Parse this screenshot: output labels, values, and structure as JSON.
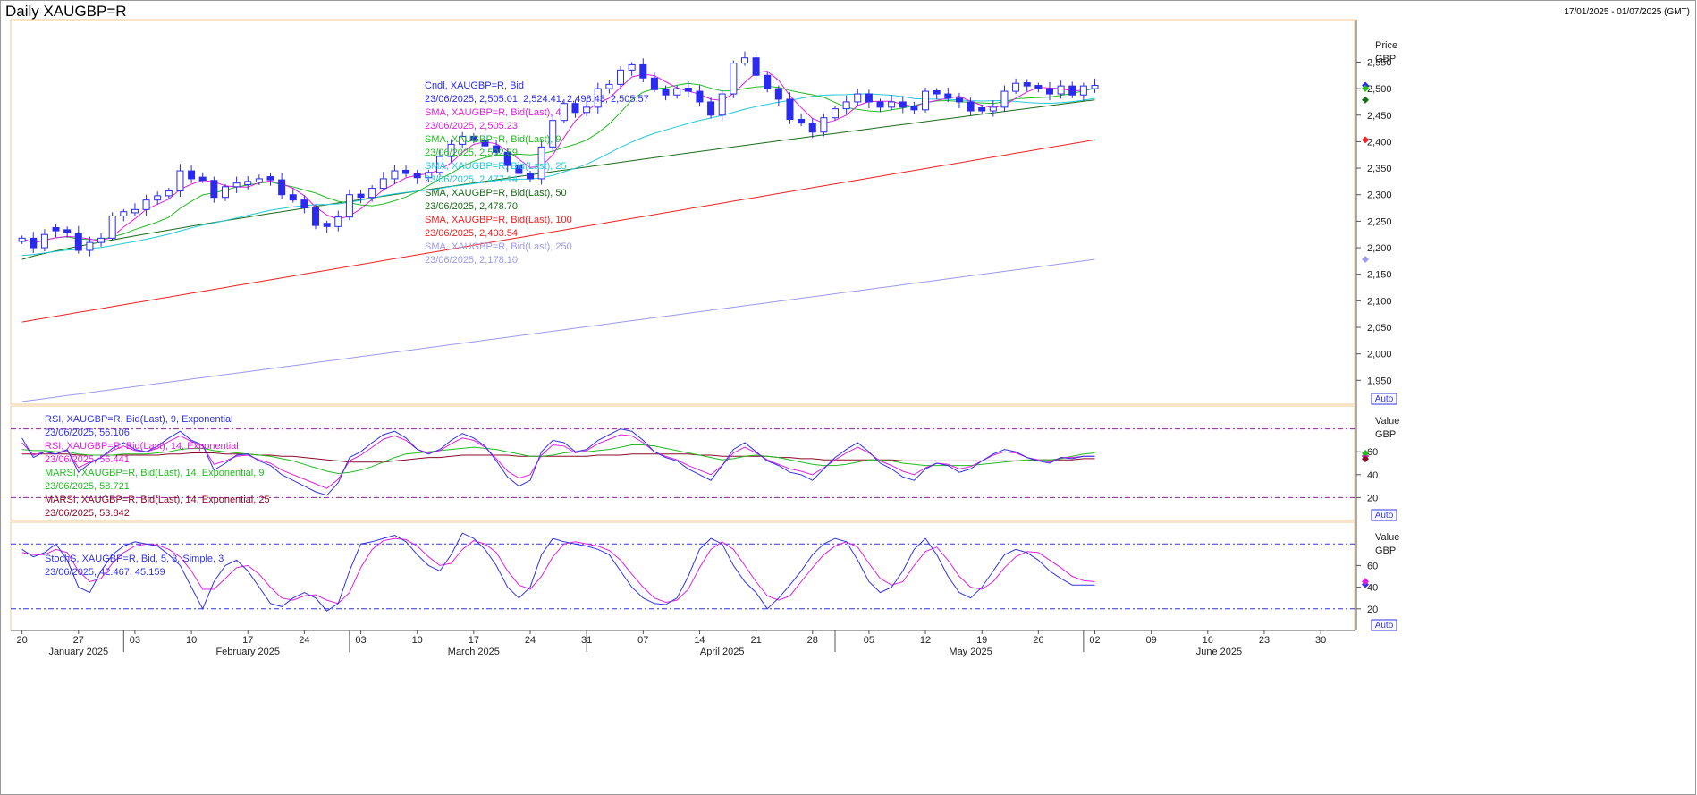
{
  "header": {
    "title": "Daily XAUGBP=R",
    "date_range": "17/01/2025 - 01/07/2025 (GMT)"
  },
  "colors": {
    "candle": "#2a2af0",
    "sma4": "#e020e0",
    "sma9": "#22bb22",
    "sma25": "#20c8d8",
    "sma50": "#1a6b1a",
    "sma100": "#ee2222",
    "sma250": "#9a9aee",
    "rsi9": "#3232e6",
    "rsi14": "#e020e0",
    "marsi9": "#22bb22",
    "marsi25": "#8b0a2a",
    "stoch_k": "#3232e6",
    "stoch_d": "#e020e0",
    "ref": "#9020a0",
    "frame": "#f0c890"
  },
  "legend_price": [
    {
      "text": "Cndl, XAUGBP=R, Bid",
      "color": "candle"
    },
    {
      "text": "23/06/2025, 2,505.01, 2,524.41, 2,498.43, 2,505.57",
      "color": "candle"
    },
    {
      "text": "SMA, XAUGBP=R, Bid(Last),  4",
      "color": "sma4"
    },
    {
      "text": "23/06/2025, 2,505.23",
      "color": "sma4"
    },
    {
      "text": "SMA, XAUGBP=R, Bid(Last),  9",
      "color": "sma9"
    },
    {
      "text": "23/06/2025, 2,502.89",
      "color": "sma9"
    },
    {
      "text": "SMA, XAUGBP=R, Bid(Last),  25",
      "color": "sma25"
    },
    {
      "text": "23/06/2025, 2,477.14",
      "color": "sma25"
    },
    {
      "text": "SMA, XAUGBP=R, Bid(Last),  50",
      "color": "sma50"
    },
    {
      "text": "23/06/2025, 2,478.70",
      "color": "sma50"
    },
    {
      "text": "SMA, XAUGBP=R, Bid(Last),  100",
      "color": "sma100"
    },
    {
      "text": "23/06/2025, 2,403.54",
      "color": "sma100"
    },
    {
      "text": "SMA, XAUGBP=R, Bid(Last),  250",
      "color": "sma250"
    },
    {
      "text": "23/06/2025, 2,178.10",
      "color": "sma250"
    }
  ],
  "legend_rsi": [
    {
      "text": "RSI, XAUGBP=R, Bid(Last),  9, Exponential",
      "color": "rsi9"
    },
    {
      "text": "23/06/2025, 56.106",
      "color": "rsi9"
    },
    {
      "text": "RSI, XAUGBP=R, Bid(Last),  14, Exponential",
      "color": "rsi14"
    },
    {
      "text": "23/06/2025, 56.441",
      "color": "rsi14"
    },
    {
      "text": "MARSI, XAUGBP=R, Bid(Last),  14, Exponential, 9",
      "color": "marsi9"
    },
    {
      "text": "23/06/2025, 58.721",
      "color": "marsi9"
    },
    {
      "text": "MARSI, XAUGBP=R, Bid(Last),  14, Exponential, 25",
      "color": "marsi25"
    },
    {
      "text": "23/06/2025, 53.842",
      "color": "marsi25"
    }
  ],
  "legend_stoch": [
    {
      "text": "StochS, XAUGBP=R, Bid,  5, 3, Simple, 3",
      "color": "stoch_k"
    },
    {
      "text": "23/06/2025, 42.467, 45.159",
      "color": "stoch_k"
    }
  ],
  "axis_labels": {
    "price_unit_1": "Price",
    "price_unit_2": "GBP",
    "value_1": "Value",
    "value_2": "GBP",
    "auto": "Auto"
  },
  "chart_data": {
    "type": "candlestick",
    "price_ticks": [
      "1,950",
      "2,000",
      "2,050",
      "2,100",
      "2,150",
      "2,200",
      "2,250",
      "2,300",
      "2,350",
      "2,400",
      "2,450",
      "2,500",
      "2,550"
    ],
    "price_tick_values": [
      1950,
      2000,
      2050,
      2100,
      2150,
      2200,
      2250,
      2300,
      2350,
      2400,
      2450,
      2500,
      2550
    ],
    "ylim": [
      1905,
      2630
    ],
    "osc_ticks": [
      "20",
      "40",
      "60"
    ],
    "osc_tick_values": [
      20,
      40,
      60
    ],
    "osc_ylim": [
      0,
      100
    ],
    "ref_levels": [
      20,
      80
    ],
    "x_day_labels": [
      "20",
      "27",
      "03",
      "10",
      "17",
      "24",
      "03",
      "10",
      "17",
      "24",
      "31",
      "07",
      "14",
      "21",
      "28",
      "05",
      "12",
      "19",
      "26",
      "02",
      "09",
      "16",
      "23",
      "30"
    ],
    "x_day_indices": [
      0,
      5,
      10,
      15,
      20,
      25,
      30,
      35,
      40,
      45,
      50,
      55,
      60,
      65,
      70,
      75,
      80,
      85,
      90,
      95,
      100,
      105,
      110,
      115
    ],
    "x_months": [
      {
        "label": "January 2025",
        "idx": 5
      },
      {
        "label": "February 2025",
        "idx": 20
      },
      {
        "label": "March 2025",
        "idx": 40
      },
      {
        "label": "April 2025",
        "idx": 62
      },
      {
        "label": "May 2025",
        "idx": 84
      },
      {
        "label": "June 2025",
        "idx": 106
      }
    ],
    "month_separators": [
      9,
      29,
      50,
      72,
      94
    ],
    "x_domain": [
      -1,
      118
    ],
    "closes": [
      2218,
      2200,
      2225,
      2232,
      2228,
      2195,
      2210,
      2218,
      2260,
      2268,
      2272,
      2290,
      2298,
      2307,
      2345,
      2330,
      2327,
      2295,
      2315,
      2322,
      2325,
      2330,
      2328,
      2300,
      2290,
      2275,
      2242,
      2240,
      2258,
      2300,
      2295,
      2312,
      2330,
      2345,
      2340,
      2332,
      2342,
      2372,
      2395,
      2410,
      2402,
      2392,
      2380,
      2355,
      2340,
      2330,
      2390,
      2440,
      2472,
      2455,
      2465,
      2500,
      2508,
      2535,
      2545,
      2520,
      2498,
      2488,
      2500,
      2495,
      2475,
      2450,
      2490,
      2548,
      2558,
      2525,
      2500,
      2480,
      2442,
      2435,
      2418,
      2445,
      2462,
      2475,
      2490,
      2475,
      2465,
      2475,
      2465,
      2460,
      2495,
      2490,
      2482,
      2475,
      2458,
      2458,
      2465,
      2495,
      2510,
      2505,
      2500,
      2490,
      2505,
      2488,
      2505,
      2506
    ],
    "candles_bull": [
      1,
      0,
      1,
      0,
      0,
      0,
      1,
      1,
      1,
      1,
      1,
      1,
      1,
      1,
      1,
      0,
      0,
      0,
      1,
      1,
      1,
      1,
      0,
      0,
      0,
      0,
      0,
      0,
      1,
      1,
      0,
      1,
      1,
      1,
      0,
      0,
      1,
      1,
      1,
      1,
      0,
      0,
      0,
      0,
      0,
      0,
      1,
      1,
      1,
      0,
      1,
      1,
      1,
      1,
      1,
      0,
      0,
      0,
      1,
      0,
      0,
      0,
      1,
      1,
      1,
      0,
      0,
      0,
      0,
      0,
      0,
      1,
      1,
      1,
      1,
      0,
      0,
      1,
      0,
      0,
      1,
      0,
      0,
      0,
      0,
      0,
      1,
      1,
      1,
      0,
      0,
      0,
      1,
      0,
      1,
      1
    ],
    "series_price": [
      {
        "name": "SMA 4",
        "color": "sma4"
      },
      {
        "name": "SMA 9",
        "color": "sma9"
      },
      {
        "name": "SMA 25",
        "color": "sma25"
      },
      {
        "name": "SMA 50",
        "color": "sma50",
        "last": 2478.7
      },
      {
        "name": "SMA 100",
        "color": "sma100",
        "first": 2060,
        "last": 2403.54
      },
      {
        "name": "SMA 250",
        "color": "sma250",
        "first": 1910,
        "last": 2178.1
      }
    ],
    "rsi9": [
      72,
      55,
      60,
      58,
      62,
      42,
      50,
      55,
      63,
      68,
      62,
      60,
      65,
      72,
      78,
      70,
      66,
      44,
      50,
      57,
      58,
      52,
      48,
      40,
      35,
      30,
      25,
      22,
      33,
      55,
      60,
      68,
      75,
      78,
      72,
      62,
      58,
      62,
      70,
      76,
      72,
      65,
      52,
      38,
      30,
      35,
      60,
      70,
      68,
      60,
      62,
      70,
      75,
      80,
      78,
      70,
      60,
      55,
      52,
      45,
      40,
      35,
      48,
      62,
      68,
      60,
      52,
      48,
      42,
      40,
      35,
      45,
      55,
      62,
      68,
      60,
      50,
      45,
      38,
      35,
      45,
      50,
      48,
      42,
      45,
      52,
      58,
      62,
      60,
      55,
      52,
      50,
      55,
      54,
      56,
      56
    ],
    "rsi14": [
      68,
      57,
      60,
      58,
      61,
      46,
      51,
      55,
      61,
      65,
      61,
      60,
      63,
      69,
      74,
      69,
      65,
      49,
      52,
      56,
      57,
      53,
      50,
      44,
      40,
      36,
      32,
      28,
      36,
      52,
      57,
      64,
      71,
      74,
      70,
      62,
      59,
      61,
      67,
      72,
      70,
      64,
      54,
      43,
      37,
      40,
      57,
      66,
      65,
      59,
      61,
      67,
      71,
      75,
      74,
      68,
      60,
      56,
      53,
      48,
      44,
      40,
      48,
      59,
      64,
      59,
      53,
      49,
      45,
      43,
      40,
      46,
      53,
      59,
      64,
      59,
      52,
      48,
      43,
      40,
      46,
      50,
      49,
      45,
      47,
      52,
      57,
      60,
      59,
      55,
      53,
      51,
      55,
      55,
      56,
      56
    ],
    "marsi9": [
      62,
      61,
      61,
      60,
      60,
      58,
      57,
      57,
      57,
      58,
      58,
      58,
      59,
      60,
      62,
      63,
      63,
      61,
      60,
      59,
      58,
      57,
      56,
      54,
      52,
      49,
      46,
      43,
      41,
      42,
      44,
      47,
      51,
      55,
      58,
      59,
      60,
      61,
      62,
      63,
      64,
      63,
      62,
      60,
      58,
      56,
      56,
      57,
      59,
      60,
      60,
      61,
      62,
      64,
      66,
      66,
      65,
      63,
      61,
      59,
      57,
      55,
      53,
      54,
      56,
      57,
      56,
      55,
      53,
      51,
      49,
      48,
      48,
      49,
      51,
      53,
      53,
      52,
      50,
      49,
      48,
      48,
      48,
      48,
      48,
      49,
      50,
      51,
      52,
      53,
      53,
      53,
      54,
      56,
      58,
      59
    ],
    "marsi25": [
      58,
      58,
      58,
      58,
      58,
      57,
      57,
      57,
      57,
      57,
      57,
      57,
      57,
      58,
      58,
      59,
      59,
      59,
      58,
      58,
      58,
      57,
      57,
      56,
      56,
      55,
      54,
      53,
      52,
      51,
      51,
      51,
      51,
      52,
      53,
      54,
      55,
      55,
      56,
      57,
      57,
      57,
      57,
      57,
      56,
      56,
      56,
      56,
      56,
      56,
      56,
      57,
      57,
      57,
      58,
      58,
      58,
      58,
      58,
      58,
      57,
      57,
      56,
      56,
      56,
      56,
      56,
      55,
      55,
      54,
      54,
      53,
      53,
      53,
      53,
      53,
      53,
      53,
      52,
      52,
      52,
      52,
      52,
      52,
      52,
      52,
      52,
      52,
      52,
      52,
      53,
      53,
      53,
      53,
      54,
      54
    ],
    "stoch_k": [
      75,
      68,
      72,
      80,
      65,
      40,
      35,
      55,
      70,
      78,
      82,
      80,
      78,
      70,
      60,
      40,
      20,
      45,
      60,
      65,
      55,
      40,
      25,
      22,
      30,
      35,
      30,
      18,
      25,
      55,
      80,
      82,
      85,
      88,
      82,
      70,
      60,
      55,
      70,
      90,
      85,
      75,
      60,
      40,
      30,
      40,
      70,
      85,
      82,
      80,
      78,
      75,
      70,
      55,
      40,
      30,
      25,
      24,
      30,
      50,
      75,
      85,
      80,
      60,
      45,
      35,
      20,
      30,
      42,
      55,
      70,
      80,
      85,
      82,
      65,
      45,
      35,
      40,
      55,
      75,
      85,
      70,
      50,
      35,
      30,
      40,
      55,
      70,
      75,
      72,
      65,
      55,
      48,
      42,
      42,
      42
    ],
    "stoch_d": [
      72,
      70,
      70,
      75,
      72,
      55,
      45,
      48,
      62,
      72,
      78,
      80,
      79,
      75,
      68,
      55,
      38,
      38,
      48,
      58,
      60,
      52,
      40,
      30,
      28,
      32,
      33,
      28,
      25,
      35,
      58,
      75,
      83,
      85,
      84,
      78,
      68,
      60,
      62,
      75,
      83,
      80,
      72,
      55,
      42,
      38,
      50,
      68,
      80,
      82,
      80,
      78,
      74,
      65,
      52,
      40,
      30,
      26,
      28,
      38,
      58,
      75,
      82,
      75,
      60,
      45,
      32,
      28,
      32,
      45,
      58,
      70,
      78,
      82,
      77,
      62,
      48,
      42,
      45,
      60,
      73,
      77,
      65,
      50,
      40,
      38,
      45,
      58,
      68,
      73,
      72,
      65,
      58,
      50,
      46,
      45
    ]
  }
}
